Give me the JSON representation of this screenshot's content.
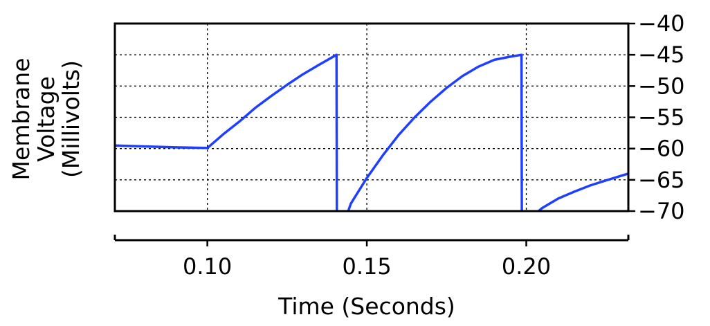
{
  "chart_data": {
    "type": "line",
    "xlabel": "Time (Seconds)",
    "ylabel_lines": [
      "Membrane",
      "Voltage",
      "(Millivolts)"
    ],
    "xlim": [
      0.071,
      0.232
    ],
    "ylim": [
      -70,
      -40
    ],
    "x_ticks": [
      0.1,
      0.15,
      0.2
    ],
    "x_tick_labels": [
      "0.10",
      "0.15",
      "0.20"
    ],
    "y_ticks": [
      -40,
      -45,
      -50,
      -55,
      -60,
      -65,
      -70
    ],
    "y_tick_labels": [
      "−40",
      "−45",
      "−50",
      "−55",
      "−60",
      "−65",
      "−70"
    ],
    "y_axis_side": "right",
    "grid": true,
    "grid_style": "dotted",
    "colors": {
      "series": "#1f3fff",
      "grid": "#000000",
      "axis": "#000000"
    },
    "series": [
      {
        "x": [
          0.071,
          0.08,
          0.09,
          0.1,
          0.105,
          0.11,
          0.115,
          0.12,
          0.125,
          0.13,
          0.135,
          0.1405,
          0.1406,
          0.1435,
          0.145,
          0.15,
          0.155,
          0.16,
          0.165,
          0.17,
          0.175,
          0.18,
          0.185,
          0.19,
          0.195,
          0.1985,
          0.1986,
          0.2015,
          0.205,
          0.21,
          0.215,
          0.22,
          0.225,
          0.232
        ],
        "y": [
          -59.5,
          -59.65,
          -59.8,
          -59.9,
          -57.7,
          -55.7,
          -53.5,
          -51.6,
          -49.8,
          -48.1,
          -46.6,
          -45.0,
          -71.0,
          -71.0,
          -68.8,
          -64.7,
          -61.1,
          -57.8,
          -55.0,
          -52.5,
          -50.3,
          -48.4,
          -46.9,
          -45.8,
          -45.3,
          -45.0,
          -71.0,
          -71.0,
          -69.5,
          -68.0,
          -66.9,
          -65.9,
          -65.1,
          -64.0
        ]
      }
    ]
  }
}
